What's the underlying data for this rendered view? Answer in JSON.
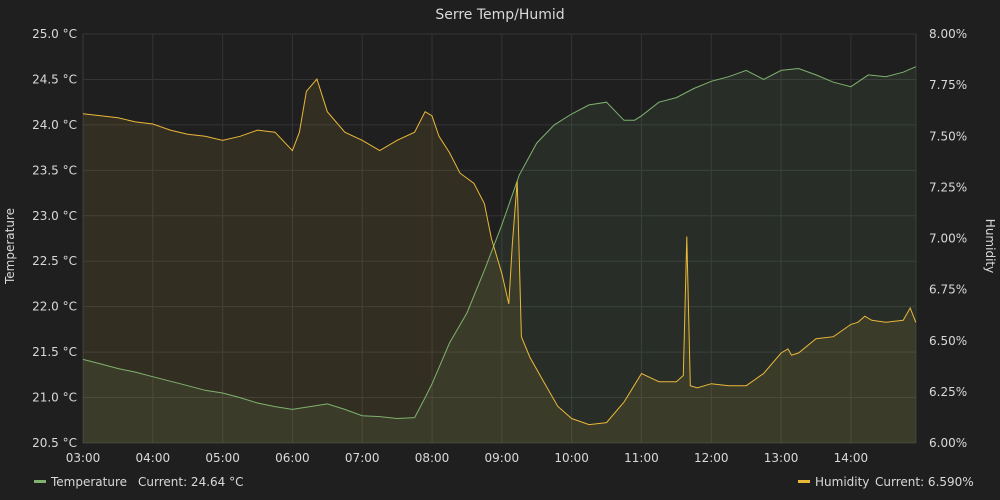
{
  "chart_data": {
    "type": "line",
    "title": "Serre Temp/Humid",
    "ylabel_left": "Temperature",
    "ylabel_right": "Humidity",
    "x_ticks": [
      "03:00",
      "04:00",
      "05:00",
      "06:00",
      "07:00",
      "08:00",
      "09:00",
      "10:00",
      "11:00",
      "12:00",
      "13:00",
      "14:00"
    ],
    "y_left_ticks": [
      "20.5 °C",
      "21.0 °C",
      "21.5 °C",
      "22.0 °C",
      "22.5 °C",
      "23.0 °C",
      "23.5 °C",
      "24.0 °C",
      "24.5 °C",
      "25.0 °C"
    ],
    "y_right_ticks": [
      "6.00%",
      "6.25%",
      "6.50%",
      "6.75%",
      "7.00%",
      "7.25%",
      "7.50%",
      "7.75%",
      "8.00%"
    ],
    "x_range_hours": [
      3.0,
      14.933
    ],
    "y_left_range": [
      20.5,
      25.0
    ],
    "y_right_range": [
      6.0,
      8.0
    ],
    "grid": true,
    "legend_position": "bottom",
    "series": [
      {
        "name": "Temperature",
        "legend_current": "Current: 24.64 °C",
        "axis": "left",
        "color": "#7eb26d",
        "x": [
          3.0,
          3.25,
          3.5,
          3.75,
          4.0,
          4.25,
          4.5,
          4.75,
          5.0,
          5.25,
          5.5,
          5.75,
          6.0,
          6.25,
          6.5,
          6.75,
          7.0,
          7.25,
          7.5,
          7.75,
          7.9,
          8.0,
          8.25,
          8.5,
          8.75,
          9.0,
          9.25,
          9.5,
          9.75,
          10.0,
          10.25,
          10.5,
          10.75,
          10.9,
          11.0,
          11.25,
          11.5,
          11.75,
          12.0,
          12.25,
          12.5,
          12.75,
          13.0,
          13.25,
          13.5,
          13.75,
          14.0,
          14.25,
          14.5,
          14.75,
          14.93
        ],
        "values": [
          21.42,
          21.37,
          21.32,
          21.28,
          21.23,
          21.18,
          21.13,
          21.08,
          21.05,
          21.0,
          20.94,
          20.9,
          20.87,
          20.9,
          20.93,
          20.87,
          20.8,
          20.79,
          20.77,
          20.78,
          21.0,
          21.15,
          21.6,
          21.93,
          22.4,
          22.9,
          23.45,
          23.8,
          24.0,
          24.12,
          24.22,
          24.25,
          24.05,
          24.05,
          24.1,
          24.25,
          24.3,
          24.4,
          24.48,
          24.53,
          24.6,
          24.5,
          24.6,
          24.62,
          24.55,
          24.47,
          24.42,
          24.55,
          24.53,
          24.58,
          24.64
        ]
      },
      {
        "name": "Humidity",
        "legend_current": "Current: 6.590%",
        "axis": "right",
        "color": "#eab839",
        "x": [
          3.0,
          3.25,
          3.5,
          3.75,
          4.0,
          4.25,
          4.5,
          4.75,
          5.0,
          5.25,
          5.5,
          5.75,
          6.0,
          6.1,
          6.2,
          6.35,
          6.5,
          6.75,
          7.0,
          7.25,
          7.5,
          7.75,
          7.9,
          8.0,
          8.1,
          8.25,
          8.4,
          8.6,
          8.75,
          8.85,
          9.0,
          9.1,
          9.15,
          9.22,
          9.28,
          9.4,
          9.6,
          9.8,
          10.0,
          10.25,
          10.5,
          10.75,
          11.0,
          11.25,
          11.5,
          11.6,
          11.65,
          11.7,
          11.8,
          12.0,
          12.25,
          12.5,
          12.75,
          13.0,
          13.1,
          13.15,
          13.25,
          13.5,
          13.75,
          14.0,
          14.1,
          14.2,
          14.3,
          14.5,
          14.75,
          14.85,
          14.93
        ],
        "values": [
          7.61,
          7.6,
          7.59,
          7.57,
          7.56,
          7.53,
          7.51,
          7.5,
          7.48,
          7.5,
          7.53,
          7.52,
          7.43,
          7.52,
          7.72,
          7.78,
          7.62,
          7.52,
          7.48,
          7.43,
          7.48,
          7.52,
          7.62,
          7.6,
          7.5,
          7.42,
          7.32,
          7.27,
          7.17,
          7.0,
          6.83,
          6.68,
          6.97,
          7.28,
          6.52,
          6.42,
          6.3,
          6.18,
          6.12,
          6.09,
          6.1,
          6.2,
          6.34,
          6.3,
          6.3,
          6.33,
          7.01,
          6.28,
          6.27,
          6.29,
          6.28,
          6.28,
          6.34,
          6.44,
          6.46,
          6.43,
          6.44,
          6.51,
          6.52,
          6.58,
          6.59,
          6.62,
          6.6,
          6.59,
          6.6,
          6.66,
          6.59
        ]
      }
    ]
  }
}
